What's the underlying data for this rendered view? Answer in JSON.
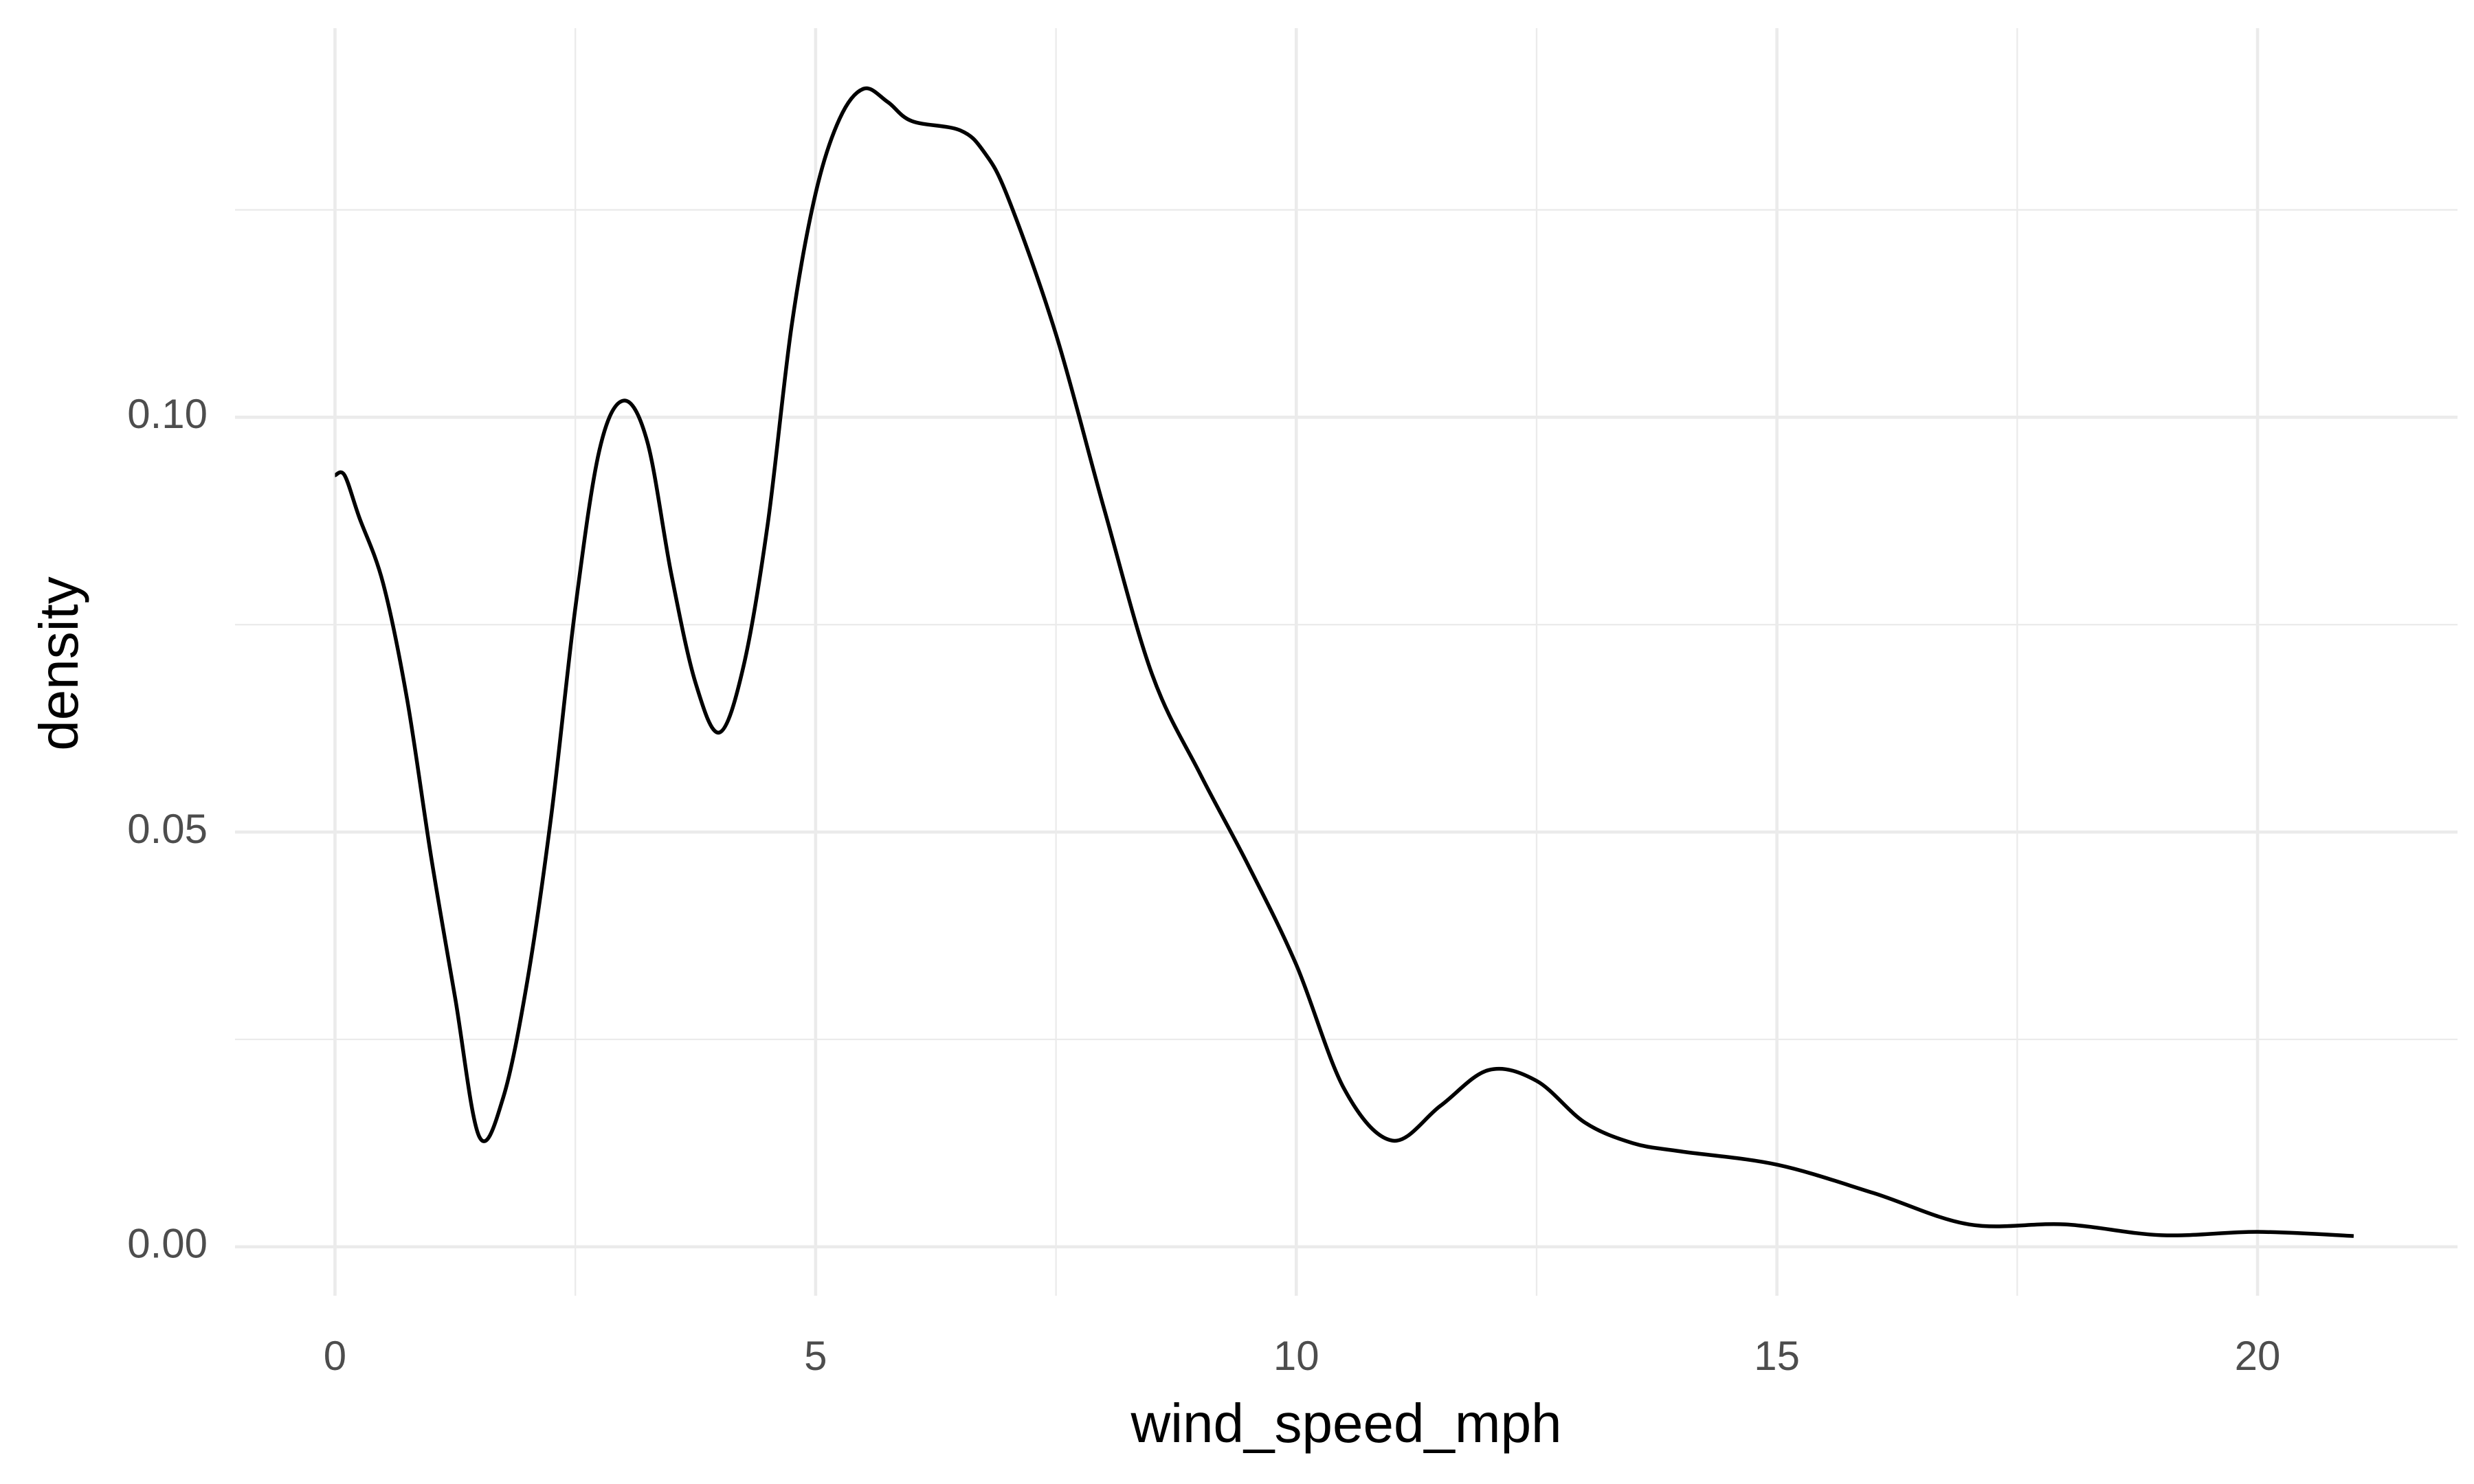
{
  "chart_data": {
    "type": "density",
    "x_label": "wind_speed_mph",
    "y_label": "density",
    "color": "#000000",
    "grid": true,
    "minor_grid": true,
    "xlim": [
      -1.04,
      22.08
    ],
    "ylim": [
      -0.0059,
      0.1469
    ],
    "xticks": [
      0,
      5,
      10,
      15,
      20
    ],
    "yticks": [
      {
        "value": 0,
        "label": "0.00"
      },
      {
        "value": 0.05,
        "label": "0.05"
      },
      {
        "value": 0.1,
        "label": "0.10"
      }
    ],
    "x": [
      0,
      0.1,
      0.25,
      0.5,
      0.75,
      1.0,
      1.25,
      1.5,
      1.75,
      2.0,
      2.25,
      2.5,
      2.75,
      3.0,
      3.25,
      3.5,
      3.75,
      4.0,
      4.25,
      4.5,
      4.75,
      5.0,
      5.25,
      5.5,
      5.75,
      6.0,
      6.5,
      6.75,
      7.0,
      7.5,
      8.0,
      8.5,
      9.0,
      9.5,
      10.0,
      10.5,
      11.0,
      11.5,
      12.0,
      12.5,
      13.0,
      13.5,
      14.0,
      15.0,
      16.0,
      17.0,
      18.0,
      19.0,
      20.0,
      21.0
    ],
    "values": [
      0.093,
      0.093,
      0.088,
      0.08,
      0.066,
      0.047,
      0.03,
      0.0133,
      0.018,
      0.032,
      0.052,
      0.077,
      0.096,
      0.102,
      0.097,
      0.081,
      0.068,
      0.062,
      0.07,
      0.087,
      0.111,
      0.127,
      0.136,
      0.1396,
      0.138,
      0.1357,
      0.1346,
      0.132,
      0.1265,
      0.11,
      0.089,
      0.069,
      0.057,
      0.046,
      0.034,
      0.019,
      0.0128,
      0.017,
      0.0213,
      0.02,
      0.015,
      0.0125,
      0.0115,
      0.0099,
      0.0065,
      0.0027,
      0.0027,
      0.0014,
      0.0018,
      0.0013
    ]
  }
}
